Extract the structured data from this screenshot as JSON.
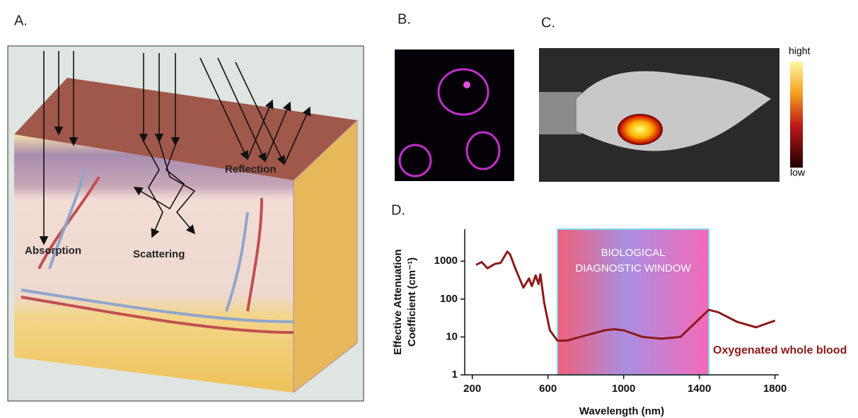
{
  "panels": {
    "a": {
      "label": "A.",
      "annotations": [
        "Absorption",
        "Scattering",
        "Reflection"
      ]
    },
    "b": {
      "label": "B."
    },
    "c": {
      "label": "C.",
      "colorbar": {
        "high": "hight",
        "low": "low"
      }
    },
    "d": {
      "label": "D."
    }
  },
  "chart_data": {
    "type": "line",
    "xlabel": "Wavelength (nm)",
    "ylabel": [
      "Effective Attenuation",
      "Coefficient (cm⁻¹)"
    ],
    "x": [
      220,
      250,
      280,
      320,
      350,
      385,
      400,
      430,
      470,
      500,
      515,
      535,
      550,
      560,
      580,
      610,
      650,
      700,
      800,
      900,
      950,
      1000,
      1100,
      1200,
      1300,
      1400,
      1450,
      1500,
      1600,
      1700,
      1800
    ],
    "series": [
      {
        "name": "Oxygenated whole blood",
        "color": "#8b1a1a",
        "values": [
          800,
          950,
          650,
          850,
          900,
          1800,
          1500,
          600,
          200,
          350,
          220,
          420,
          250,
          450,
          80,
          15,
          8,
          8,
          11,
          15,
          16,
          15,
          10,
          9,
          10,
          30,
          52,
          45,
          25,
          18,
          27
        ]
      }
    ],
    "window": {
      "range": [
        650,
        1450
      ],
      "label": [
        "BIOLOGICAL",
        "DIAGNOSTIC WINDOW"
      ]
    },
    "xlim": [
      160,
      1820
    ],
    "xticks": [
      200,
      600,
      1000,
      1400,
      1800
    ],
    "ylim": [
      1,
      7000
    ],
    "yticks": [
      1,
      10,
      100,
      1000
    ],
    "log_y": true
  }
}
